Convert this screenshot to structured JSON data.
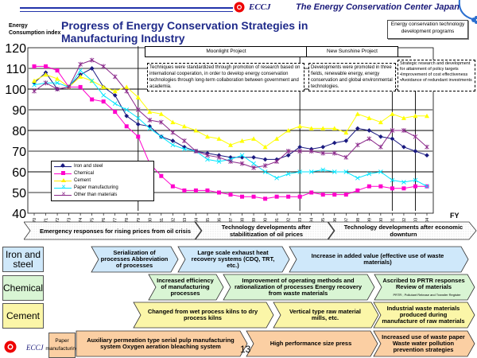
{
  "header": {
    "org_short": "ECCJ",
    "org_name": "The Energy Conservation Center Japan",
    "title": "Progress of Energy Conservation Strategies in Manufacturing Industry",
    "y_axis_label_line1": "Energy",
    "y_axis_label_line2": "Consumption index",
    "program_box": "Energy conservation technology development programs"
  },
  "projects": {
    "moonlight": {
      "title": "Moonlight Project",
      "text": "Techniques were standardized through promotion of research based on international cooperation, in order to develop energy conservation technologies through long-term collaboration between government and academia."
    },
    "new_sunshine": {
      "title": "New Sunshine Project",
      "text": "Developments were promoted in three fields, renewable energy, energy conservation and global environmental technologies."
    },
    "strategic": {
      "text_line1": "Strategic research and development for attainment of policy targets",
      "text_line2": "•Improvement of cost effectiveness",
      "text_line3": "•Avoidance of redundant investments"
    }
  },
  "chart_data": {
    "type": "line",
    "title": "Progress of Energy Conservation Strategies in Manufacturing Industry",
    "xlabel": "FY",
    "ylabel": "Energy Consumption index",
    "ylim": [
      40,
      120
    ],
    "yticks": [
      40,
      50,
      60,
      70,
      80,
      90,
      100,
      110,
      120
    ],
    "grid": true,
    "legend_position": "bottom-left",
    "x": [
      1970,
      1971,
      1972,
      1973,
      1974,
      1975,
      1976,
      1977,
      1978,
      1979,
      1980,
      1981,
      1982,
      1983,
      1984,
      1985,
      1986,
      1987,
      1988,
      1989,
      1990,
      1991,
      1992,
      1993,
      1994,
      1995,
      1996,
      1997,
      1998,
      1999,
      2000,
      2001,
      2002,
      2003,
      2004
    ],
    "series": [
      {
        "name": "Iron and steel",
        "color": "#1a1a80",
        "marker": "diamond",
        "values": [
          103,
          108,
          100,
          101,
          107,
          110,
          101,
          97,
          87,
          83,
          82,
          77,
          75,
          72,
          70,
          69,
          68,
          67,
          67,
          67,
          66,
          66,
          68,
          72,
          71,
          72,
          74,
          75,
          81,
          80,
          77,
          76,
          72,
          70,
          68
        ]
      },
      {
        "name": "Chemical",
        "color": "#ff00cc",
        "marker": "square",
        "values": [
          111,
          111,
          109,
          101,
          101,
          95,
          94,
          89,
          82,
          77,
          64,
          58,
          53,
          51,
          51,
          51,
          50,
          49,
          48,
          48,
          47,
          48,
          48,
          48,
          50,
          49,
          49,
          49,
          51,
          53,
          53,
          52,
          52,
          53,
          53
        ]
      },
      {
        "name": "Cement",
        "color": "#ffff00",
        "marker": "triangle",
        "values": [
          104,
          107,
          105,
          101,
          106,
          104,
          101,
          99,
          101,
          96,
          89,
          88,
          84,
          82,
          80,
          77,
          76,
          73,
          75,
          76,
          72,
          76,
          80,
          82,
          81,
          81,
          81,
          79,
          88,
          86,
          84,
          88,
          86,
          87,
          87
        ]
      },
      {
        "name": "Paper manufacturing",
        "color": "#00e5ff",
        "marker": "x",
        "values": [
          102,
          103,
          103,
          101,
          109,
          104,
          97,
          93,
          90,
          86,
          81,
          77,
          73,
          71,
          70,
          66,
          65,
          66,
          68,
          64,
          60,
          57,
          59,
          60,
          60,
          61,
          60,
          60,
          57,
          59,
          60,
          56,
          55,
          56,
          53
        ]
      },
      {
        "name": "Other than materials",
        "color": "#8b2a8b",
        "marker": "star",
        "values": [
          99,
          103,
          100,
          101,
          112,
          114,
          111,
          106,
          99,
          90,
          85,
          84,
          79,
          75,
          70,
          68,
          67,
          65,
          64,
          62,
          63,
          65,
          70,
          70,
          70,
          69,
          69,
          67,
          73,
          76,
          72,
          80,
          80,
          77,
          72
        ]
      }
    ]
  },
  "eras": [
    {
      "label": "Emergency responses for rising prices from oil crisis"
    },
    {
      "label": "Technology developments after stabilitization of oil prices"
    },
    {
      "label": "Technology developments after economic downturn"
    }
  ],
  "industries": {
    "iron": {
      "label": "Iron and steel",
      "steps": [
        "Serialization of processes Abbreviation of processes",
        "Large scale exhaust heat recovery systems (CDQ, TRT, etc.)",
        "Increase in added value (effective use of waste materials)"
      ]
    },
    "chemical": {
      "label": "Chemical",
      "steps": [
        "Increased efficiency of manufacturing processes",
        "Improvement of operating methods and rationalization of processes Energy recovery from waste materials",
        "Ascribed to PRTR responses Review of materials"
      ],
      "footnote": "PRTR ; Pollutant Release and Transfer Register"
    },
    "cement": {
      "label": "Cement",
      "steps": [
        "Changed from wet process kilns to dry process kilns",
        "Vertical type raw material mills, etc.",
        "Industrial waste materials produced during manufacture of raw materials"
      ]
    },
    "paper": {
      "label": "Paper manufacturing",
      "steps": [
        "Auxiliary permeation type serial pulp manufacturing system Oxygen aeration bleaching system",
        "High performance size press",
        "Increased use of waste paper Waste water pollution prevention strategies"
      ]
    }
  },
  "footer": {
    "org_short": "ECCJ",
    "page_number": "13"
  }
}
